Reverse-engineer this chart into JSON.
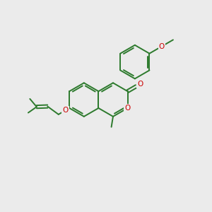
{
  "bg_color": "#ebebeb",
  "bond_color": "#2d7a2d",
  "oxygen_color": "#cc0000",
  "lw": 1.4,
  "figsize": [
    3.0,
    3.0
  ],
  "dpi": 100,
  "xlim": [
    0,
    10
  ],
  "ylim": [
    0,
    10
  ]
}
